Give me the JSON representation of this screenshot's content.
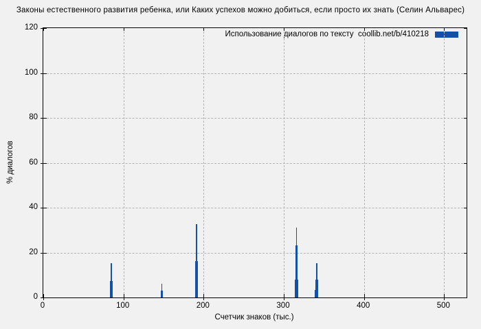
{
  "title": "Законы естественного развития ребенка, или Каких успехов можно добиться, если просто их знать (Селин Альварес)",
  "colors": {
    "bar": "#1351a8",
    "background": "#f1f1f1",
    "grid": "#b4b4b4",
    "axis": "#000000"
  },
  "chart_data": {
    "type": "bar",
    "title": "Законы естественного развития ребенка, или Каких успехов можно добиться, если просто их знать (Селин Альварес)",
    "series_name": "Использование диалогов по тексту  coollib.net/b/410218",
    "xlabel": "Счетчик знаков (тыс.)",
    "ylabel": "% диалогов",
    "xlim": [
      0,
      528
    ],
    "ylim": [
      0,
      120
    ],
    "xticks": [
      0,
      100,
      200,
      300,
      400,
      500
    ],
    "yticks": [
      0,
      20,
      40,
      60,
      80,
      100,
      120
    ],
    "grid": true,
    "legend_position": "top-right-inside",
    "points": [
      {
        "x": 84,
        "y": 7.4
      },
      {
        "x": 85,
        "y": 15.4
      },
      {
        "x": 86,
        "y": 7.4
      },
      {
        "x": 147,
        "y": 3.1
      },
      {
        "x": 148,
        "y": 6.2
      },
      {
        "x": 149,
        "y": 3.1
      },
      {
        "x": 190,
        "y": 16.2
      },
      {
        "x": 191,
        "y": 32.8
      },
      {
        "x": 192,
        "y": 16.2
      },
      {
        "x": 314,
        "y": 8.0
      },
      {
        "x": 315,
        "y": 17.7
      },
      {
        "x": 316,
        "y": 31.0
      },
      {
        "x": 317,
        "y": 23.3
      },
      {
        "x": 318,
        "y": 8.0
      },
      {
        "x": 339,
        "y": 3.4
      },
      {
        "x": 340,
        "y": 8.0
      },
      {
        "x": 341,
        "y": 15.4
      },
      {
        "x": 342,
        "y": 11.0
      },
      {
        "x": 343,
        "y": 3.4
      }
    ],
    "clusters": [
      {
        "x": 85,
        "layers": [
          {
            "h": 15.4,
            "w": 1.5
          },
          {
            "h": 7.4,
            "w": 3.5
          }
        ]
      },
      {
        "x": 148,
        "layers": [
          {
            "h": 6.2,
            "w": 1.5
          },
          {
            "h": 3.1,
            "w": 3.5
          }
        ]
      },
      {
        "x": 191,
        "layers": [
          {
            "h": 32.8,
            "w": 1.5
          },
          {
            "h": 16.2,
            "w": 4.0
          }
        ]
      },
      {
        "x": 316,
        "layers": [
          {
            "h": 31.0,
            "w": 1.5
          },
          {
            "h": 23.3,
            "w": 2.5
          },
          {
            "h": 17.7,
            "w": 3.5
          },
          {
            "h": 8.0,
            "w": 5.0
          }
        ]
      },
      {
        "x": 341,
        "layers": [
          {
            "h": 15.4,
            "w": 1.5
          },
          {
            "h": 11.0,
            "w": 2.5
          },
          {
            "h": 8.0,
            "w": 3.5
          },
          {
            "h": 3.4,
            "w": 5.0
          }
        ]
      }
    ]
  }
}
